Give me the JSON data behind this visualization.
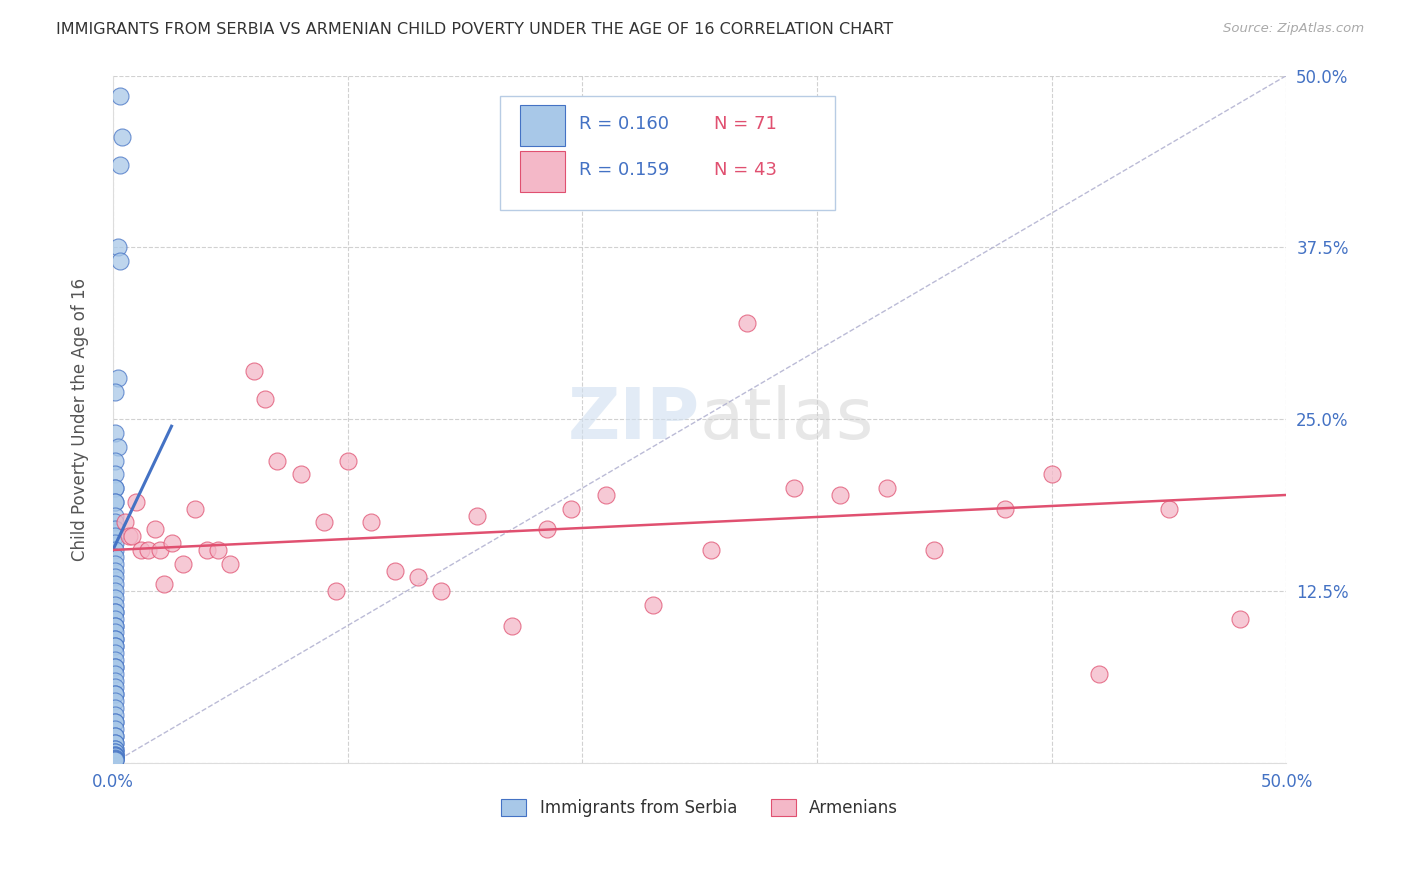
{
  "title": "IMMIGRANTS FROM SERBIA VS ARMENIAN CHILD POVERTY UNDER THE AGE OF 16 CORRELATION CHART",
  "source": "Source: ZipAtlas.com",
  "ylabel": "Child Poverty Under the Age of 16",
  "xlim": [
    0.0,
    0.5
  ],
  "ylim": [
    0.0,
    0.5
  ],
  "xtick_vals": [
    0.0,
    0.1,
    0.2,
    0.3,
    0.4,
    0.5
  ],
  "ytick_vals": [
    0.0,
    0.125,
    0.25,
    0.375,
    0.5
  ],
  "color_blue": "#a8c8e8",
  "color_pink": "#f4b8c8",
  "line_blue": "#4472C4",
  "line_pink": "#E05070",
  "dashed_line_color": "#aaaacc",
  "tick_color": "#4472C4",
  "legend_label1": "Immigrants from Serbia",
  "legend_label2": "Armenians",
  "serbia_x": [
    0.003,
    0.004,
    0.003,
    0.002,
    0.003,
    0.002,
    0.001,
    0.001,
    0.002,
    0.001,
    0.001,
    0.001,
    0.001,
    0.001,
    0.001,
    0.001,
    0.001,
    0.001,
    0.001,
    0.001,
    0.001,
    0.001,
    0.001,
    0.001,
    0.001,
    0.001,
    0.001,
    0.001,
    0.001,
    0.001,
    0.001,
    0.001,
    0.001,
    0.001,
    0.001,
    0.001,
    0.001,
    0.001,
    0.001,
    0.001,
    0.001,
    0.001,
    0.001,
    0.001,
    0.001,
    0.001,
    0.001,
    0.001,
    0.001,
    0.001,
    0.001,
    0.001,
    0.001,
    0.001,
    0.001,
    0.001,
    0.001,
    0.001,
    0.001,
    0.001,
    0.001,
    0.001,
    0.001,
    0.001,
    0.001,
    0.001,
    0.001,
    0.001,
    0.001,
    0.001,
    0.001
  ],
  "serbia_y": [
    0.485,
    0.455,
    0.435,
    0.375,
    0.365,
    0.28,
    0.27,
    0.24,
    0.23,
    0.22,
    0.21,
    0.2,
    0.2,
    0.19,
    0.19,
    0.18,
    0.175,
    0.17,
    0.165,
    0.16,
    0.155,
    0.15,
    0.145,
    0.14,
    0.135,
    0.13,
    0.125,
    0.12,
    0.115,
    0.11,
    0.11,
    0.105,
    0.1,
    0.1,
    0.095,
    0.09,
    0.09,
    0.085,
    0.085,
    0.08,
    0.075,
    0.07,
    0.07,
    0.065,
    0.06,
    0.055,
    0.05,
    0.05,
    0.045,
    0.04,
    0.035,
    0.03,
    0.03,
    0.025,
    0.02,
    0.02,
    0.015,
    0.015,
    0.01,
    0.01,
    0.008,
    0.008,
    0.006,
    0.006,
    0.005,
    0.005,
    0.004,
    0.003,
    0.003,
    0.002,
    0.002
  ],
  "armenian_x": [
    0.005,
    0.007,
    0.008,
    0.01,
    0.012,
    0.015,
    0.018,
    0.02,
    0.022,
    0.025,
    0.03,
    0.035,
    0.04,
    0.045,
    0.05,
    0.06,
    0.065,
    0.07,
    0.08,
    0.09,
    0.095,
    0.1,
    0.11,
    0.12,
    0.13,
    0.14,
    0.155,
    0.17,
    0.185,
    0.195,
    0.21,
    0.23,
    0.255,
    0.27,
    0.29,
    0.31,
    0.33,
    0.35,
    0.38,
    0.4,
    0.42,
    0.45,
    0.48
  ],
  "armenian_y": [
    0.175,
    0.165,
    0.165,
    0.19,
    0.155,
    0.155,
    0.17,
    0.155,
    0.13,
    0.16,
    0.145,
    0.185,
    0.155,
    0.155,
    0.145,
    0.285,
    0.265,
    0.22,
    0.21,
    0.175,
    0.125,
    0.22,
    0.175,
    0.14,
    0.135,
    0.125,
    0.18,
    0.1,
    0.17,
    0.185,
    0.195,
    0.115,
    0.155,
    0.32,
    0.2,
    0.195,
    0.2,
    0.155,
    0.185,
    0.21,
    0.065,
    0.185,
    0.105
  ],
  "blue_trend_x0": 0.0,
  "blue_trend_y0": 0.155,
  "blue_trend_x1": 0.025,
  "blue_trend_y1": 0.245,
  "pink_trend_x0": 0.0,
  "pink_trend_y0": 0.155,
  "pink_trend_x1": 0.5,
  "pink_trend_y1": 0.195
}
